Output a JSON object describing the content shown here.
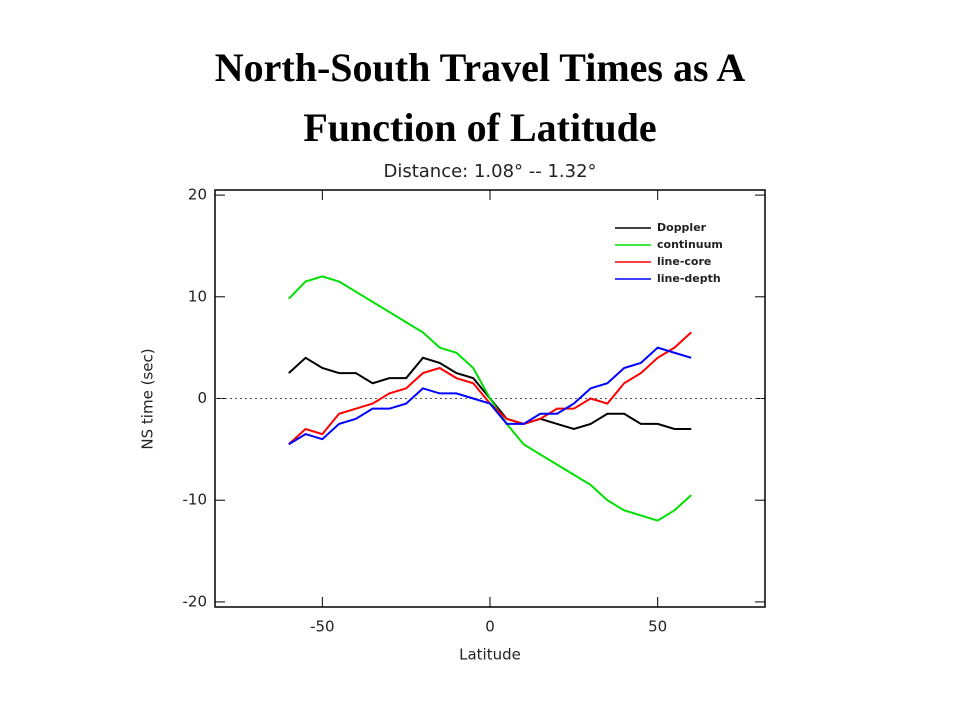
{
  "slide_title_lines": [
    "North-South Travel Times as A",
    "Function of Latitude"
  ],
  "chart_data": {
    "type": "line",
    "title": "Distance: 1.08° -- 1.32°",
    "x_label": "Latitude",
    "y_label": "NS time (sec)",
    "x": [
      -60,
      -55,
      -50,
      -45,
      -40,
      -35,
      -30,
      -25,
      -20,
      -15,
      -10,
      -5,
      0,
      5,
      10,
      15,
      20,
      25,
      30,
      35,
      40,
      45,
      50,
      55,
      60
    ],
    "series": [
      {
        "name": "Doppler",
        "color": "#000000",
        "values": [
          2.5,
          4,
          3,
          2.5,
          2.5,
          1.5,
          2,
          2,
          4,
          3.5,
          2.5,
          2,
          0,
          -2,
          -2.5,
          -2,
          -2.5,
          -3,
          -2.5,
          -1.5,
          -1.5,
          -2.5,
          -2.5,
          -3,
          -3
        ]
      },
      {
        "name": "continuum",
        "color": "#00e000",
        "values": [
          9.8,
          11.5,
          12,
          11.5,
          10.5,
          9.5,
          8.5,
          7.5,
          6.5,
          5,
          4.5,
          3,
          0,
          -2.5,
          -4.5,
          -5.5,
          -6.5,
          -7.5,
          -8.5,
          -10,
          -11,
          -11.5,
          -12,
          -11,
          -9.5
        ]
      },
      {
        "name": "line-core",
        "color": "#ff0000",
        "values": [
          -4.5,
          -3,
          -3.5,
          -1.5,
          -1,
          -0.5,
          0.5,
          1,
          2.5,
          3,
          2,
          1.5,
          -0.5,
          -2,
          -2.5,
          -2,
          -1,
          -1,
          0,
          -0.5,
          1.5,
          2.5,
          4,
          5,
          6.5
        ]
      },
      {
        "name": "line-depth",
        "color": "#0000ff",
        "values": [
          -4.5,
          -3.5,
          -4,
          -2.5,
          -2,
          -1,
          -1,
          -0.5,
          1,
          0.5,
          0.5,
          0,
          -0.5,
          -2.5,
          -2.5,
          -1.5,
          -1.5,
          -0.5,
          1,
          1.5,
          3,
          3.5,
          5,
          4.5,
          4
        ]
      }
    ],
    "xlim": [
      -82,
      82
    ],
    "ylim": [
      -20.5,
      20.5
    ],
    "xticks": [
      -50,
      0,
      50
    ],
    "yticks": [
      -20,
      -10,
      0,
      10,
      20
    ],
    "reference_line": 0,
    "legend": "upper right"
  }
}
